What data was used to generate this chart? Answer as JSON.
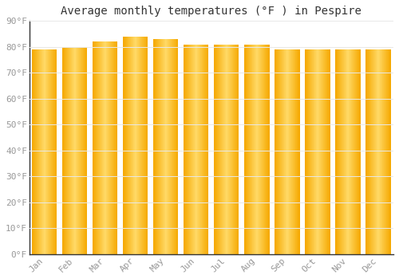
{
  "title": "Average monthly temperatures (°F ) in Pespire",
  "months": [
    "Jan",
    "Feb",
    "Mar",
    "Apr",
    "May",
    "Jun",
    "Jul",
    "Aug",
    "Sep",
    "Oct",
    "Nov",
    "Dec"
  ],
  "values": [
    79,
    80,
    82,
    84,
    83,
    81,
    81,
    81,
    79,
    79,
    79,
    79
  ],
  "ylim": [
    0,
    90
  ],
  "yticks": [
    0,
    10,
    20,
    30,
    40,
    50,
    60,
    70,
    80,
    90
  ],
  "ytick_labels": [
    "0°F",
    "10°F",
    "20°F",
    "30°F",
    "40°F",
    "50°F",
    "60°F",
    "70°F",
    "80°F",
    "90°F"
  ],
  "bar_color_center": "#FFD966",
  "bar_color_edge": "#F5A800",
  "bar_gap_color": "#FFFFFF",
  "background_color": "#FFFFFF",
  "grid_color": "#E8E8E8",
  "title_fontsize": 10,
  "tick_fontsize": 8,
  "bar_width": 0.82
}
